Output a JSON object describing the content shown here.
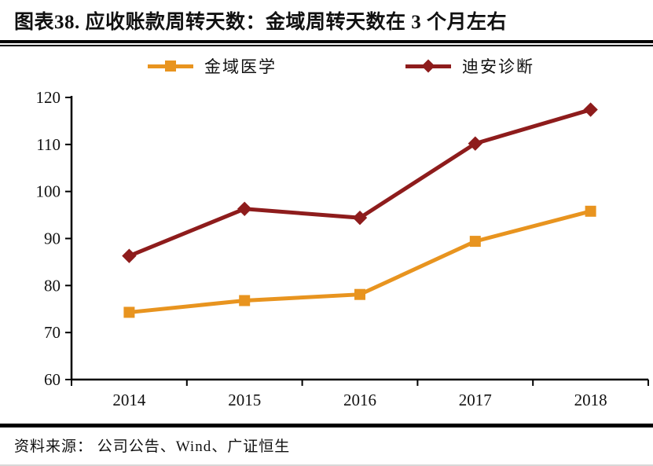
{
  "figure": {
    "title": "图表38.  应收账款周转天数：金域周转天数在 3 个月左右",
    "source": "资料来源：  公司公告、Wind、广证恒生"
  },
  "legend": {
    "items": [
      {
        "label": "金域医学",
        "marker": "square-marker-icon",
        "color": "#E8941F"
      },
      {
        "label": "迪安诊断",
        "marker": "diamond-marker-icon",
        "color": "#8E1C1C"
      }
    ]
  },
  "chart_data": {
    "type": "line",
    "title": "应收账款周转天数",
    "categories": [
      "2014",
      "2015",
      "2016",
      "2017",
      "2018"
    ],
    "series": [
      {
        "name": "金域医学",
        "marker": "square",
        "color": "#E8941F",
        "values": [
          74.3,
          76.8,
          78.1,
          89.4,
          95.8
        ]
      },
      {
        "name": "迪安诊断",
        "marker": "diamond",
        "color": "#8E1C1C",
        "values": [
          86.3,
          96.3,
          94.4,
          110.2,
          117.4
        ]
      }
    ],
    "xlabel": "",
    "ylabel": "",
    "ylim": [
      60,
      120
    ],
    "yticks": [
      60,
      70,
      80,
      90,
      100,
      110,
      120
    ],
    "grid": false,
    "legend_position": "top",
    "axis_color": "#000000"
  }
}
